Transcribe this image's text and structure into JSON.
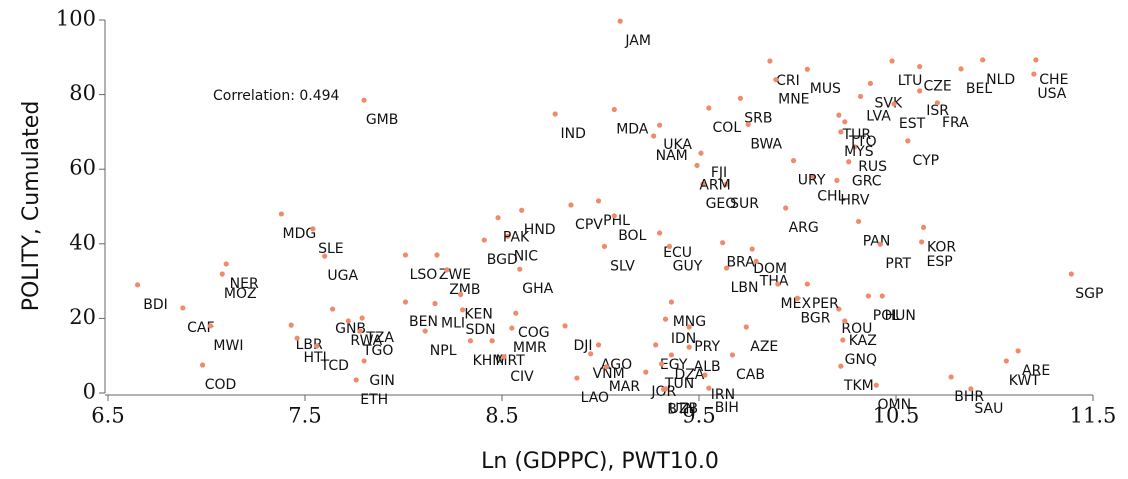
{
  "chart_data": {
    "type": "scatter",
    "x_label": "Ln (GDPPC), PWT10.0",
    "y_label": "POLITY, Cumulated",
    "annotation": "Correlation: 0.494",
    "xlim": [
      6.5,
      11.5
    ],
    "xticks": [
      6.5,
      7.5,
      8.5,
      9.5,
      10.5,
      11.5
    ],
    "ylim": [
      0,
      100
    ],
    "yticks": [
      0,
      20,
      40,
      60,
      80,
      100
    ],
    "x": [
      6.65,
      6.88,
      7.02,
      6.98,
      7.1,
      7.08,
      7.38,
      7.54,
      7.6,
      7.8,
      7.43,
      7.46,
      7.56,
      7.64,
      7.72,
      7.79,
      7.78,
      7.8,
      7.76,
      8.11,
      8.01,
      8.17,
      8.22,
      8.01,
      8.16,
      8.29,
      8.3,
      8.34,
      8.45,
      8.55,
      8.57,
      8.51,
      8.59,
      8.41,
      8.53,
      8.6,
      8.48,
      8.85,
      8.99,
      9.07,
      9.02,
      8.82,
      8.99,
      8.95,
      9.03,
      8.88,
      9.23,
      9.28,
      9.36,
      9.33,
      9.45,
      9.36,
      9.31,
      9.45,
      9.33,
      9.32,
      9.55,
      9.53,
      9.67,
      9.74,
      9.3,
      9.35,
      9.52,
      9.64,
      9.62,
      9.77,
      9.64,
      9.79,
      9.9,
      10.0,
      10.21,
      10.24,
      10.23,
      10.36,
      10.43,
      10.05,
      10.22,
      10.4,
      10.78,
      10.88,
      11.06,
      11.12,
      11.39,
      9.94,
      10.31,
      10.42,
      10.64,
      10.63,
      10.08,
      10.2,
      9.98,
      10.26,
      10.29,
      10.22,
      10.21,
      10.24,
      10.56,
      9.1,
      8.77,
      9.07,
      9.27,
      9.3,
      9.51,
      9.49,
      9.55,
      9.71,
      9.75,
      9.86,
      9.89,
      10.05,
      10.37,
      10.32,
      10.49,
      10.62,
      10.71,
      11.2,
      10.83,
      10.62,
      10.48,
      11.21,
      10.94
    ],
    "series": [
      {
        "color": "#f08a6a",
        "values": [
          29,
          22.8,
          18,
          7.5,
          34.6,
          31.9,
          48,
          44,
          36.7,
          78.5,
          18.2,
          14.7,
          12.6,
          22.5,
          19.3,
          20.1,
          16.6,
          8.6,
          3.5,
          16.6,
          37,
          37,
          33,
          24.4,
          24,
          26.4,
          22.3,
          14,
          14,
          17.4,
          21.4,
          9.7,
          33.2,
          41,
          42,
          49,
          47,
          50.4,
          51.5,
          47.5,
          39.3,
          18,
          12.9,
          10.5,
          7,
          4,
          5.6,
          12.9,
          24.4,
          19.8,
          17.7,
          10.2,
          7.8,
          12.3,
          1.1,
          1,
          1.3,
          4.8,
          10.2,
          17.7,
          42.9,
          39.3,
          56,
          56,
          40.3,
          38.6,
          33.5,
          35.3,
          29.2,
          25.4,
          22.5,
          19.3,
          14.2,
          26,
          26,
          29.2,
          7.2,
          2.1,
          4.3,
          1.1,
          8.6,
          11.3,
          31.9,
          49.6,
          46,
          39.9,
          44.4,
          40.5,
          58,
          57,
          62.3,
          62,
          66,
          70,
          74.5,
          72.7,
          67.6,
          99.7,
          74.8,
          76,
          68.9,
          71.8,
          64.3,
          61,
          76.4,
          79,
          72,
          89,
          84,
          86.8,
          83,
          79.5,
          77.5,
          81,
          77.8,
          85.5,
          86.9,
          87.5,
          89,
          89.3,
          89.3
        ],
        "point_labels": [
          "BDI",
          "CAF",
          "MWI",
          "COD",
          "NER",
          "MOZ",
          "MDG",
          "SLE",
          "UGA",
          "GMB",
          "LBR",
          "HTI",
          "TCD",
          "GNB",
          "RWA",
          "TZA",
          "TGO",
          "GIN",
          "ETH",
          "NPL",
          "LSO",
          "ZWE",
          "ZMB",
          "BEN",
          "MLI",
          "KEN",
          "SDN",
          "KHM",
          "MRT",
          "MMR",
          "COG",
          "CIV",
          "GHA",
          "BGD",
          "NIC",
          "HND",
          "PAK",
          "CPV",
          "PHL",
          "BOL",
          "SLV",
          "DJI",
          "AGO",
          "VNM",
          "MAR",
          "LAO",
          "JOR",
          "EGY",
          "MNG",
          "IDN",
          "PRY",
          "DZA",
          "TUN",
          "ALB",
          "UZB",
          "BTN",
          "BIH",
          "IRN",
          "CAB",
          "AZE",
          "ECU",
          "GUY",
          "GEO",
          "SUR",
          "BRA",
          "DOM",
          "LBN",
          "THA",
          "MEX",
          "BGR",
          "ROU",
          "KAZ",
          "GNQ",
          "POL",
          "HUN",
          "PER",
          "TKM",
          "OMN",
          "BHR",
          "SAU",
          "KWT",
          "ARE",
          "SGP",
          "ARG",
          "PAN",
          "PRT",
          "KOR",
          "ESP",
          "CHL",
          "HRV",
          "URY",
          "GRC",
          "RUS",
          "MYS",
          "TUR",
          "TTO",
          "CYP",
          "JAM",
          "IND",
          "MDA",
          "NAM",
          "UKA",
          "FJI",
          "ARM",
          "COL",
          "SRB",
          "BWA",
          "CRI",
          "MNE",
          "MUS",
          "SVK",
          "LVA",
          "EST",
          "ISR",
          "FRA",
          "USA",
          "BEL",
          "CZE",
          "LTU",
          "CHE",
          "NLD"
        ]
      }
    ]
  }
}
